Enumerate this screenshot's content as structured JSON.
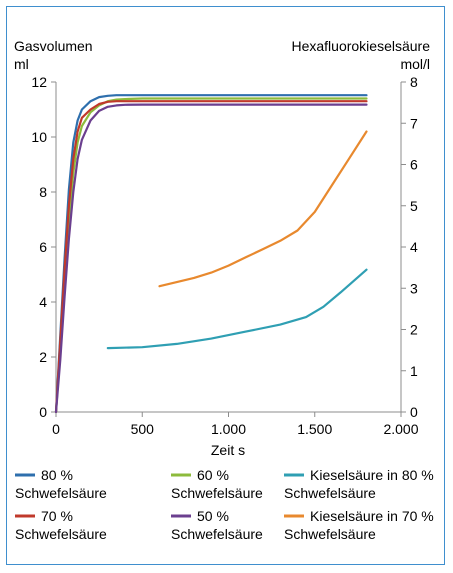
{
  "chart_data": {
    "type": "line",
    "left_axis": {
      "label_line1": "Gasvolumen",
      "label_line2": "ml",
      "range": [
        0,
        12
      ],
      "ticks": [
        0,
        2,
        4,
        6,
        8,
        10,
        12
      ],
      "tick_labels": [
        "0",
        "2",
        "4",
        "6",
        "8",
        "10",
        "12"
      ]
    },
    "right_axis": {
      "label_line1": "Hexafluorokieselsäure",
      "label_line2": "mol/l",
      "range": [
        0,
        8
      ],
      "ticks": [
        0,
        1,
        2,
        3,
        4,
        5,
        6,
        7,
        8
      ],
      "tick_labels": [
        "0",
        "1",
        "2",
        "3",
        "4",
        "5",
        "6",
        "7",
        "8"
      ]
    },
    "x_axis": {
      "label": "Zeit s",
      "range": [
        0,
        2000
      ],
      "ticks": [
        0,
        500,
        1000,
        1500,
        2000
      ],
      "tick_labels": [
        "0",
        "500",
        "1.000",
        "1.500",
        "2.000"
      ]
    },
    "grid": false,
    "legend_position": "bottom",
    "series": [
      {
        "name_line1": "80 %",
        "name_line2": "Schwefelsäure",
        "axis": "left",
        "color": "#2e6fad",
        "x": [
          0,
          25,
          50,
          75,
          100,
          125,
          150,
          200,
          250,
          300,
          350,
          400,
          500,
          1000,
          1500,
          1800
        ],
        "y": [
          0.0,
          2.8,
          5.6,
          8.1,
          9.8,
          10.6,
          11.0,
          11.3,
          11.45,
          11.5,
          11.52,
          11.52,
          11.52,
          11.52,
          11.52,
          11.52
        ]
      },
      {
        "name_line1": "60 %",
        "name_line2": "Schwefelsäure",
        "axis": "left",
        "color": "#8dbb3c",
        "x": [
          0,
          25,
          50,
          75,
          100,
          125,
          150,
          200,
          250,
          300,
          350,
          400,
          500,
          1000,
          1500,
          1800
        ],
        "y": [
          0.0,
          2.3,
          4.8,
          7.0,
          8.7,
          9.8,
          10.4,
          10.9,
          11.15,
          11.3,
          11.36,
          11.38,
          11.4,
          11.4,
          11.4,
          11.4
        ]
      },
      {
        "name_line1": "Kieselsäure in 80 %",
        "name_line2": "Schwefelsäure",
        "axis": "right",
        "color": "#2f9fb3",
        "x": [
          300,
          500,
          700,
          900,
          1100,
          1300,
          1450,
          1550,
          1650,
          1800
        ],
        "y": [
          1.55,
          1.57,
          1.65,
          1.78,
          1.95,
          2.12,
          2.3,
          2.55,
          2.9,
          3.45
        ]
      },
      {
        "name_line1": "70 %",
        "name_line2": "Schwefelsäure",
        "axis": "left",
        "color": "#c0392b",
        "x": [
          0,
          25,
          50,
          75,
          100,
          125,
          150,
          200,
          250,
          300,
          350,
          400,
          500,
          1000,
          1500,
          1800
        ],
        "y": [
          0.0,
          2.6,
          5.2,
          7.5,
          9.2,
          10.2,
          10.7,
          11.0,
          11.2,
          11.28,
          11.3,
          11.3,
          11.3,
          11.3,
          11.3,
          11.3
        ]
      },
      {
        "name_line1": "50 %",
        "name_line2": "Schwefelsäure",
        "axis": "left",
        "color": "#6b3f8f",
        "x": [
          0,
          25,
          50,
          75,
          100,
          125,
          150,
          200,
          250,
          300,
          350,
          400,
          500,
          1000,
          1500,
          1800
        ],
        "y": [
          0.0,
          1.9,
          4.2,
          6.3,
          8.0,
          9.2,
          9.9,
          10.6,
          10.95,
          11.1,
          11.15,
          11.17,
          11.18,
          11.18,
          11.18,
          11.18
        ]
      },
      {
        "name_line1": "Kieselsäure in 70 %",
        "name_line2": "Schwefelsäure",
        "axis": "right",
        "color": "#e8892e",
        "x": [
          600,
          700,
          800,
          900,
          1000,
          1100,
          1200,
          1300,
          1400,
          1500,
          1600,
          1700,
          1800
        ],
        "y": [
          3.05,
          3.15,
          3.25,
          3.38,
          3.55,
          3.75,
          3.95,
          4.15,
          4.4,
          4.85,
          5.5,
          6.15,
          6.8
        ]
      }
    ]
  }
}
